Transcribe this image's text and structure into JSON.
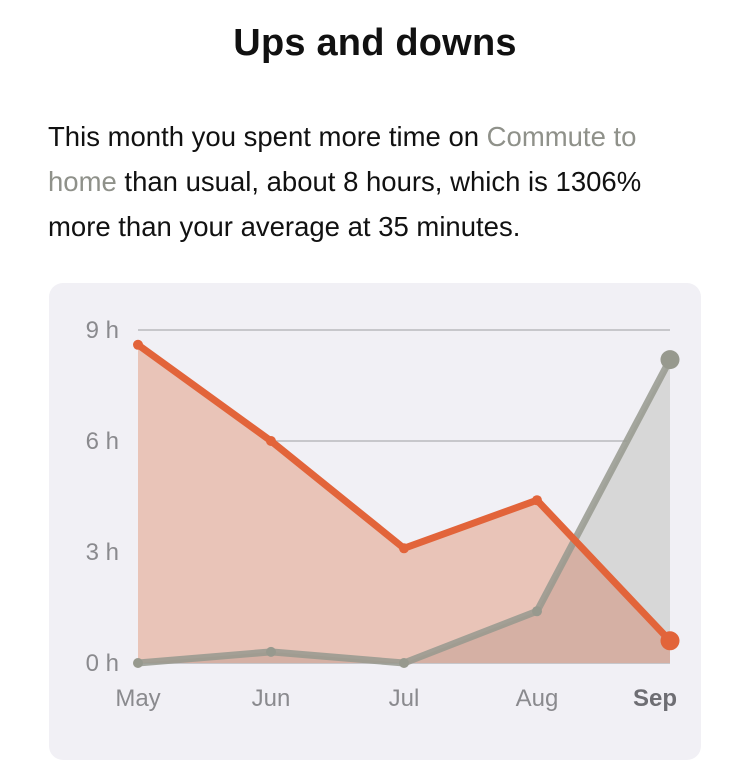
{
  "header": {
    "title": "Ups and downs"
  },
  "summary": {
    "part1": "This month you spent more time on ",
    "activity": "Commute to home",
    "part2": " than usual, about 8 hours, which is 1306% more than your average at 35 minutes."
  },
  "colors": {
    "primary_line": "#e2643a",
    "primary_fill": "#e9c4b8",
    "secondary_line": "#97998e",
    "secondary_fill": "#d7d7d7",
    "overlap_fill": "#d5b0a4",
    "grid": "#b9b9bd",
    "card_bg": "#f1f0f5"
  },
  "chart_data": {
    "type": "area",
    "categories": [
      "May",
      "Jun",
      "Jul",
      "Aug",
      "Sep"
    ],
    "highlight_category": "Sep",
    "y_ticks": [
      "0 h",
      "3 h",
      "6 h",
      "9 h"
    ],
    "y_tick_values": [
      0,
      3,
      6,
      9
    ],
    "ylim": [
      0,
      9
    ],
    "grid": true,
    "series": [
      {
        "values": [
          8.6,
          6.0,
          3.1,
          4.4,
          0.6
        ]
      },
      {
        "values": [
          0.0,
          0.3,
          0.0,
          1.4,
          8.2
        ]
      }
    ]
  }
}
